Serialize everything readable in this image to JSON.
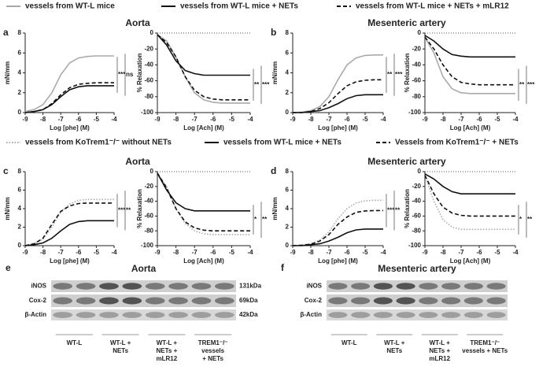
{
  "chart_data": [
    {
      "type": "line",
      "panel": "a",
      "title": "Aorta",
      "xlabel": "Log [phe] (M)",
      "ylabel": "mN/mm",
      "x": [
        -9,
        -8.5,
        -8,
        -7.5,
        -7,
        -6.5,
        -6,
        -5.5,
        -5,
        -4.5,
        -4
      ],
      "xlim": [
        -9,
        -4
      ],
      "xticks": [
        -9,
        -8,
        -7,
        -6,
        -5,
        -4
      ],
      "ylim": [
        0,
        8
      ],
      "yticks": [
        0,
        2,
        4,
        6,
        8
      ],
      "annotations": [
        "***",
        "ns"
      ],
      "series": [
        {
          "name": "vessels from WT-L mice",
          "color": "#aaaaaa",
          "dash": "solid",
          "values": [
            0.1,
            0.3,
            0.8,
            2.0,
            3.8,
            5.0,
            5.5,
            5.65,
            5.7,
            5.7,
            5.7
          ]
        },
        {
          "name": "vessels from WT-L mice + NETs",
          "color": "#111111",
          "dash": "solid",
          "values": [
            0,
            0.1,
            0.3,
            0.8,
            1.6,
            2.3,
            2.6,
            2.7,
            2.7,
            2.7,
            2.7
          ]
        },
        {
          "name": "vessels from WT-L mice + NETs + mLR12",
          "color": "#111111",
          "dash": "dashed",
          "values": [
            0,
            0.1,
            0.3,
            0.9,
            1.8,
            2.5,
            2.85,
            2.95,
            3,
            3,
            3
          ]
        }
      ]
    },
    {
      "type": "line",
      "xlabel": "Log [Ach] (M)",
      "ylabel": "% Relaxation",
      "x": [
        -9,
        -8.5,
        -8,
        -7.5,
        -7,
        -6.5,
        -6,
        -5.5,
        -5,
        -4.5,
        -4
      ],
      "xlim": [
        -9,
        -4
      ],
      "xticks": [
        -9,
        -8,
        -7,
        -6,
        -5,
        -4
      ],
      "ylim": [
        -100,
        0
      ],
      "yticks": [
        -100,
        -80,
        -60,
        -40,
        -20,
        0
      ],
      "annotations": [
        "**",
        "***"
      ],
      "series": [
        {
          "color": "#aaaaaa",
          "dash": "solid",
          "values": [
            -2,
            -10,
            -30,
            -55,
            -75,
            -84,
            -87,
            -88,
            -88,
            -88,
            -88
          ]
        },
        {
          "color": "#111111",
          "dash": "solid",
          "values": [
            -2,
            -15,
            -35,
            -47,
            -51,
            -53,
            -53,
            -53,
            -53,
            -53,
            -53
          ]
        },
        {
          "color": "#111111",
          "dash": "dashed",
          "values": [
            -2,
            -12,
            -30,
            -55,
            -72,
            -80,
            -83,
            -84,
            -84,
            -84,
            -84
          ]
        }
      ]
    },
    {
      "type": "line",
      "panel": "b",
      "title": "Mesenteric artery",
      "xlabel": "Log [phe] (M)",
      "ylabel": "mN/mm",
      "x": [
        -9,
        -8.5,
        -8,
        -7.5,
        -7,
        -6.5,
        -6,
        -5.5,
        -5,
        -4.5,
        -4
      ],
      "xlim": [
        -9,
        -4
      ],
      "xticks": [
        -9,
        -8,
        -7,
        -6,
        -5,
        -4
      ],
      "ylim": [
        0,
        8
      ],
      "yticks": [
        0,
        2,
        4,
        6,
        8
      ],
      "annotations": [
        "**",
        "***"
      ],
      "series": [
        {
          "color": "#aaaaaa",
          "dash": "solid",
          "values": [
            0,
            0.05,
            0.2,
            0.6,
            1.6,
            3.3,
            4.8,
            5.5,
            5.75,
            5.8,
            5.8
          ]
        },
        {
          "color": "#111111",
          "dash": "solid",
          "values": [
            0,
            0,
            0.1,
            0.2,
            0.5,
            0.9,
            1.4,
            1.7,
            1.8,
            1.8,
            1.8
          ]
        },
        {
          "color": "#111111",
          "dash": "dashed",
          "values": [
            0,
            0,
            0.1,
            0.4,
            1.0,
            1.9,
            2.7,
            3.1,
            3.25,
            3.3,
            3.3
          ]
        }
      ]
    },
    {
      "type": "line",
      "xlabel": "Log [Ach] (M)",
      "ylabel": "% Relaxation",
      "x": [
        -9,
        -8.5,
        -8,
        -7.5,
        -7,
        -6.5,
        -6,
        -5.5,
        -5,
        -4.5,
        -4
      ],
      "xlim": [
        -9,
        -4
      ],
      "xticks": [
        -9,
        -8,
        -7,
        -6,
        -5,
        -4
      ],
      "ylim": [
        -100,
        0
      ],
      "yticks": [
        -100,
        -80,
        -60,
        -40,
        -20,
        0
      ],
      "annotations": [
        "**",
        "***"
      ],
      "series": [
        {
          "color": "#aaaaaa",
          "dash": "solid",
          "values": [
            -5,
            -25,
            -55,
            -70,
            -75,
            -76,
            -76,
            -76,
            -76,
            -76,
            -76
          ]
        },
        {
          "color": "#111111",
          "dash": "solid",
          "values": [
            -3,
            -10,
            -20,
            -27,
            -29,
            -30,
            -30,
            -30,
            -30,
            -30,
            -30
          ]
        },
        {
          "color": "#111111",
          "dash": "dashed",
          "values": [
            -5,
            -20,
            -40,
            -55,
            -62,
            -64,
            -65,
            -65,
            -65,
            -65,
            -65
          ]
        }
      ]
    },
    {
      "type": "line",
      "panel": "c",
      "title": "Aorta",
      "xlabel": "Log [phe] (M)",
      "ylabel": "mN/mm",
      "x": [
        -9,
        -8.5,
        -8,
        -7.5,
        -7,
        -6.5,
        -6,
        -5.5,
        -5,
        -4.5,
        -4
      ],
      "xlim": [
        -9,
        -4
      ],
      "xticks": [
        -9,
        -8,
        -7,
        -6,
        -5,
        -4
      ],
      "ylim": [
        0,
        8
      ],
      "yticks": [
        0,
        2,
        4,
        6,
        8
      ],
      "annotations": [
        "***",
        "**"
      ],
      "series": [
        {
          "name": "vessels from KoTrem1⁻/⁻ without NETs",
          "color": "#aaaaaa",
          "dash": "dotted",
          "values": [
            0,
            0.2,
            0.7,
            2.0,
            3.6,
            4.5,
            4.9,
            5,
            5,
            5,
            5
          ]
        },
        {
          "name": "vessels from WT-L mice + NETs",
          "color": "#111111",
          "dash": "solid",
          "values": [
            0,
            0.1,
            0.3,
            0.8,
            1.6,
            2.3,
            2.6,
            2.7,
            2.7,
            2.7,
            2.7
          ]
        },
        {
          "name": "Vessels from KoTrem1⁻/⁻ + NETs",
          "color": "#111111",
          "dash": "dashed",
          "values": [
            0,
            0.2,
            0.8,
            2.3,
            3.7,
            4.3,
            4.55,
            4.6,
            4.6,
            4.6,
            4.6
          ]
        }
      ]
    },
    {
      "type": "line",
      "xlabel": "Log [Ach] (M)",
      "ylabel": "% Relaxation",
      "x": [
        -9,
        -8.5,
        -8,
        -7.5,
        -7,
        -6.5,
        -6,
        -5.5,
        -5,
        -4.5,
        -4
      ],
      "xlim": [
        -9,
        -4
      ],
      "xticks": [
        -9,
        -8,
        -7,
        -6,
        -5,
        -4
      ],
      "ylim": [
        -100,
        0
      ],
      "yticks": [
        -100,
        -80,
        -60,
        -40,
        -20,
        0
      ],
      "annotations": [
        "*",
        "**"
      ],
      "series": [
        {
          "color": "#aaaaaa",
          "dash": "dotted",
          "values": [
            -2,
            -20,
            -50,
            -70,
            -80,
            -84,
            -85,
            -85,
            -85,
            -85,
            -85
          ]
        },
        {
          "color": "#111111",
          "dash": "solid",
          "values": [
            -2,
            -25,
            -42,
            -50,
            -53,
            -53,
            -53,
            -53,
            -53,
            -53,
            -53
          ]
        },
        {
          "color": "#111111",
          "dash": "dashed",
          "values": [
            -2,
            -22,
            -50,
            -68,
            -76,
            -79,
            -80,
            -80,
            -80,
            -80,
            -80
          ]
        }
      ]
    },
    {
      "type": "line",
      "panel": "d",
      "title": "Mesenteric artery",
      "xlabel": "Log [phe] (M)",
      "ylabel": "mN/mm",
      "x": [
        -9,
        -8.5,
        -8,
        -7.5,
        -7,
        -6.5,
        -6,
        -5.5,
        -5,
        -4.5,
        -4
      ],
      "xlim": [
        -9,
        -4
      ],
      "xticks": [
        -9,
        -8,
        -7,
        -6,
        -5,
        -4
      ],
      "ylim": [
        0,
        8
      ],
      "yticks": [
        0,
        2,
        4,
        6,
        8
      ],
      "annotations": [
        "***",
        "**"
      ],
      "series": [
        {
          "color": "#aaaaaa",
          "dash": "dotted",
          "values": [
            0,
            0.05,
            0.2,
            0.6,
            1.5,
            2.9,
            4.0,
            4.6,
            4.85,
            4.9,
            4.9
          ]
        },
        {
          "color": "#111111",
          "dash": "solid",
          "values": [
            0,
            0,
            0.1,
            0.2,
            0.5,
            0.9,
            1.4,
            1.7,
            1.8,
            1.8,
            1.8
          ]
        },
        {
          "color": "#111111",
          "dash": "dashed",
          "values": [
            0,
            0.05,
            0.15,
            0.5,
            1.2,
            2.3,
            3.1,
            3.6,
            3.75,
            3.8,
            3.8
          ]
        }
      ]
    },
    {
      "type": "line",
      "xlabel": "Log [Ach] (M)",
      "ylabel": "% Relaxation",
      "x": [
        -9,
        -8.5,
        -8,
        -7.5,
        -7,
        -6.5,
        -6,
        -5.5,
        -5,
        -4.5,
        -4
      ],
      "xlim": [
        -9,
        -4
      ],
      "xticks": [
        -9,
        -8,
        -7,
        -6,
        -5,
        -4
      ],
      "ylim": [
        -100,
        0
      ],
      "yticks": [
        -100,
        -80,
        -60,
        -40,
        -20,
        0
      ],
      "annotations": [
        "*",
        "**"
      ],
      "series": [
        {
          "color": "#aaaaaa",
          "dash": "dotted",
          "values": [
            -5,
            -40,
            -65,
            -75,
            -78,
            -78,
            -78,
            -78,
            -78,
            -78,
            -78
          ]
        },
        {
          "color": "#111111",
          "dash": "solid",
          "values": [
            -3,
            -10,
            -20,
            -27,
            -30,
            -30,
            -30,
            -30,
            -30,
            -30,
            -30
          ]
        },
        {
          "color": "#111111",
          "dash": "dashed",
          "values": [
            -5,
            -30,
            -48,
            -56,
            -59,
            -60,
            -60,
            -60,
            -60,
            -60,
            -60
          ]
        }
      ]
    }
  ],
  "blots": {
    "e": {
      "panel": "e",
      "title": "Aorta",
      "rows": [
        "iNOS",
        "Cox-2",
        "β-Actin"
      ],
      "sizes": [
        "131kDa",
        "69kDa",
        "42kDa"
      ],
      "groups": [
        [
          "WT-L"
        ],
        [
          "WT-L +",
          "NETs"
        ],
        [
          "WT-L +",
          "NETs +",
          "mLR12"
        ],
        [
          "TREM1⁻/⁻",
          "vessels",
          "+ NETs"
        ]
      ]
    },
    "f": {
      "panel": "f",
      "title": "Mesenteric artery",
      "rows": [
        "iNOS",
        "Cox-2",
        "β-Actin"
      ],
      "groups": [
        [
          "WT-L"
        ],
        [
          "WT-L +",
          "NETs"
        ],
        [
          "WT-L +",
          "NETs +",
          "mLR12"
        ],
        [
          "TREM1⁻/⁻",
          "vessels + NETs"
        ]
      ]
    }
  }
}
